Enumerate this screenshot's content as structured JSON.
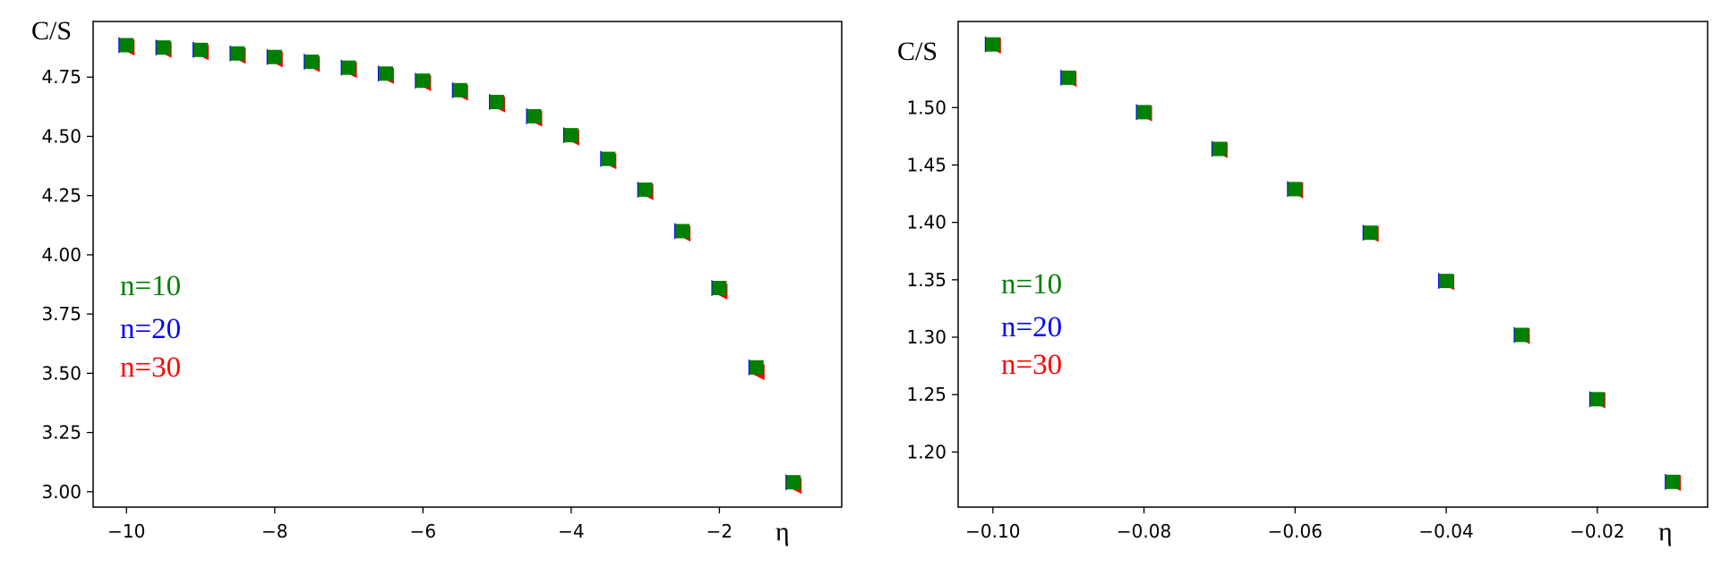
{
  "chart_data": [
    {
      "type": "scatter",
      "xlabel": "η",
      "ylabel": "C/S",
      "xlim": [
        -10.45,
        -0.35
      ],
      "ylim": [
        2.935,
        4.985
      ],
      "xticks": [
        -10,
        -8,
        -6,
        -4,
        -2
      ],
      "xtick_labels": [
        "−10",
        "−8",
        "−6",
        "−4",
        "−2"
      ],
      "yticks": [
        3.0,
        3.25,
        3.5,
        3.75,
        4.0,
        4.25,
        4.5,
        4.75
      ],
      "ytick_labels": [
        "3.00",
        "3.25",
        "3.50",
        "3.75",
        "4.00",
        "4.25",
        "4.50",
        "4.75"
      ],
      "legend": [
        {
          "label": "n=10",
          "color": "#008000"
        },
        {
          "label": "n=20",
          "color": "#0000ff"
        },
        {
          "label": "n=30",
          "color": "#ff0000"
        }
      ],
      "x": [
        -10,
        -9.5,
        -9,
        -8.5,
        -8,
        -7.5,
        -7,
        -6.5,
        -6,
        -5.5,
        -5,
        -4.5,
        -4,
        -3.5,
        -3,
        -2.5,
        -2,
        -1.5,
        -1
      ],
      "series": [
        {
          "name": "n=10",
          "color": "#008000",
          "marker": "square",
          "values": [
            4.885,
            4.875,
            4.865,
            4.85,
            4.835,
            4.815,
            4.79,
            4.765,
            4.735,
            4.695,
            4.645,
            4.585,
            4.505,
            4.405,
            4.275,
            4.1,
            3.86,
            3.525,
            3.04
          ]
        },
        {
          "name": "n=20",
          "color": "#0000ff",
          "marker": "triangle-right",
          "values": [
            4.885,
            4.875,
            4.865,
            4.85,
            4.835,
            4.815,
            4.79,
            4.765,
            4.735,
            4.695,
            4.645,
            4.585,
            4.505,
            4.405,
            4.275,
            4.1,
            3.86,
            3.525,
            3.04
          ]
        },
        {
          "name": "n=30",
          "color": "#ff0000",
          "marker": "triangle-left",
          "values": [
            4.875,
            4.865,
            4.855,
            4.84,
            4.825,
            4.805,
            4.78,
            4.755,
            4.725,
            4.685,
            4.635,
            4.575,
            4.495,
            4.395,
            4.265,
            4.09,
            3.845,
            3.505,
            3.025
          ]
        }
      ]
    },
    {
      "type": "scatter",
      "xlabel": "η",
      "ylabel": "C/S",
      "xlim": [
        -0.1046,
        -0.0054
      ],
      "ylim": [
        1.152,
        1.575
      ],
      "xticks": [
        -0.1,
        -0.08,
        -0.06,
        -0.04,
        -0.02
      ],
      "xtick_labels": [
        "−0.10",
        "−0.08",
        "−0.06",
        "−0.04",
        "−0.02"
      ],
      "yticks": [
        1.2,
        1.25,
        1.3,
        1.35,
        1.4,
        1.45,
        1.5
      ],
      "ytick_labels": [
        "1.20",
        "1.25",
        "1.30",
        "1.35",
        "1.40",
        "1.45",
        "1.50"
      ],
      "legend": [
        {
          "label": "n=10",
          "color": "#008000"
        },
        {
          "label": "n=20",
          "color": "#0000ff"
        },
        {
          "label": "n=30",
          "color": "#ff0000"
        }
      ],
      "x": [
        -0.1,
        -0.09,
        -0.08,
        -0.07,
        -0.06,
        -0.05,
        -0.04,
        -0.03,
        -0.02,
        -0.01
      ],
      "series": [
        {
          "name": "n=10",
          "color": "#008000",
          "marker": "square",
          "values": [
            1.555,
            1.526,
            1.496,
            1.464,
            1.429,
            1.391,
            1.349,
            1.302,
            1.246,
            1.174
          ]
        },
        {
          "name": "n=20",
          "color": "#0000ff",
          "marker": "triangle-right",
          "values": [
            1.555,
            1.526,
            1.496,
            1.464,
            1.429,
            1.391,
            1.349,
            1.302,
            1.246,
            1.174
          ]
        },
        {
          "name": "n=30",
          "color": "#ff0000",
          "marker": "triangle-left",
          "values": [
            1.554,
            1.525,
            1.495,
            1.463,
            1.428,
            1.39,
            1.348,
            1.301,
            1.245,
            1.173
          ]
        }
      ]
    }
  ]
}
